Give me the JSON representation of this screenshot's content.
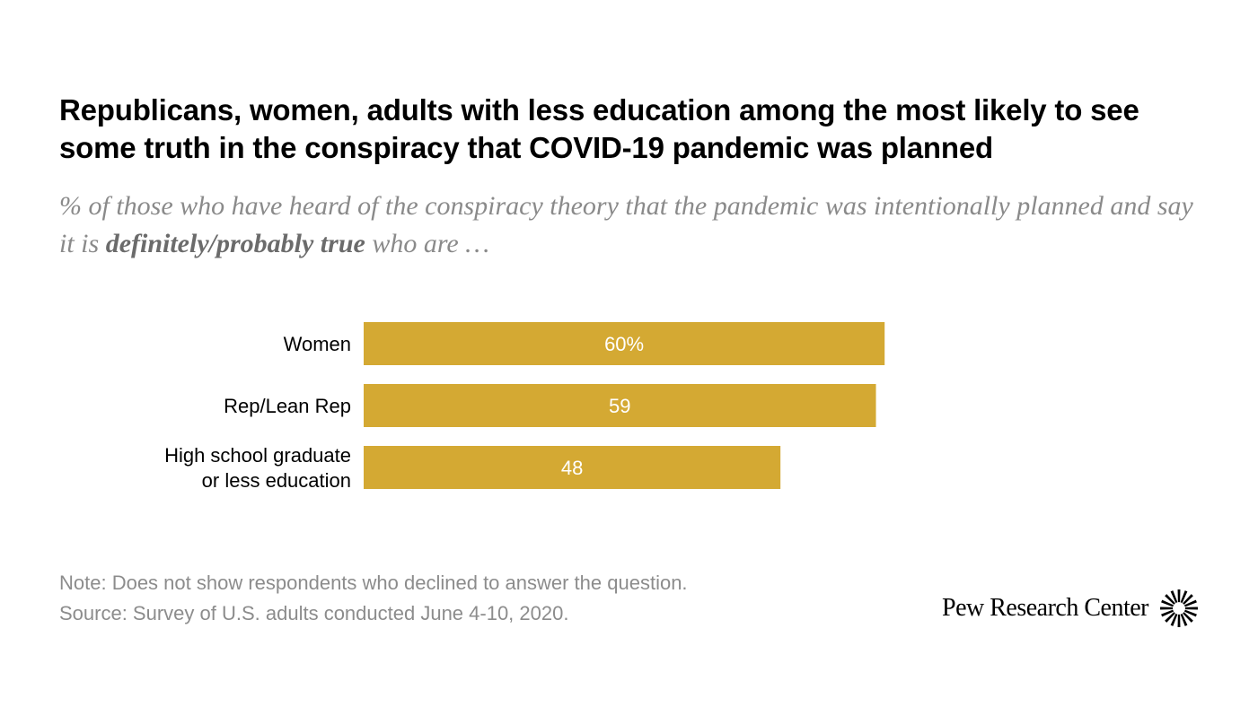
{
  "header": {
    "title": "Republicans, women, adults with less education among the most likely to see some truth in the conspiracy that COVID-19 pandemic was planned",
    "subtitle_pre": "% of those who have heard of the conspiracy theory that the pandemic was intentionally planned and say it is ",
    "subtitle_bold": "definitely/probably true",
    "subtitle_post": " who are …"
  },
  "chart_data": {
    "type": "bar",
    "orientation": "horizontal",
    "categories": [
      "Women",
      "Rep/Lean Rep",
      "High school graduate or less education"
    ],
    "category_lines": [
      [
        "Women"
      ],
      [
        "Rep/Lean Rep"
      ],
      [
        "High school graduate",
        "or less education"
      ]
    ],
    "values": [
      60,
      59,
      48
    ],
    "value_labels": [
      "60%",
      "59",
      "48"
    ],
    "xlim": [
      0,
      100
    ],
    "grid": false,
    "bar_color": "#d4a933",
    "label_color": "#ffffff"
  },
  "footer": {
    "note": "Note: Does not show respondents who declined to answer the question.",
    "source": "Source: Survey of U.S. adults conducted June 4-10, 2020.",
    "brand": "Pew Research Center",
    "brand_icon": "pew-sunburst-logo"
  }
}
